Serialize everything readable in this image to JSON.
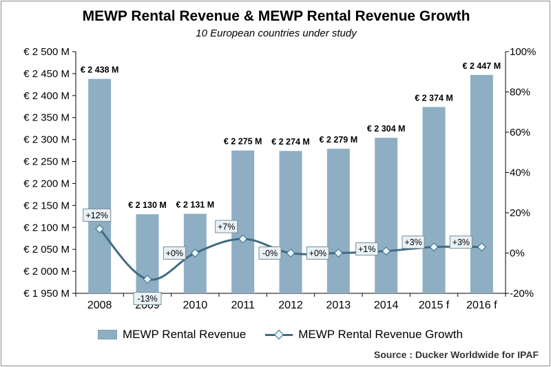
{
  "chart_data": {
    "type": "bar",
    "title": "MEWP Rental Revenue & MEWP Rental Revenue Growth",
    "subtitle": "10 European countries under study",
    "categories": [
      "2008",
      "2009",
      "2010",
      "2011",
      "2012",
      "2013",
      "2014",
      "2015 f",
      "2016 f"
    ],
    "series": [
      {
        "name": "MEWP Rental Revenue",
        "type": "bar",
        "axis": "left",
        "unit": "€ M",
        "values": [
          2438,
          2130,
          2131,
          2275,
          2274,
          2279,
          2304,
          2374,
          2447
        ],
        "labels": [
          "€ 2 438 M",
          "€ 2 130 M",
          "€ 2 131 M",
          "€ 2 275 M",
          "€ 2 274 M",
          "€ 2 279 M",
          "€ 2 304 M",
          "€ 2 374 M",
          "€ 2 447 M"
        ],
        "color": "#8eaec4"
      },
      {
        "name": "MEWP Rental Revenue Growth",
        "type": "line",
        "axis": "right",
        "unit": "%",
        "values": [
          12,
          -13,
          0,
          7,
          0,
          0,
          1,
          3,
          3
        ],
        "labels": [
          "+12%",
          "-13%",
          "+0%",
          "+7%",
          "-0%",
          "+0%",
          "+1%",
          "+3%",
          "+3%"
        ],
        "color": "#3f6b82"
      }
    ],
    "y_left": {
      "ylim": [
        1950,
        2500
      ],
      "ticks": [
        1950,
        2000,
        2050,
        2100,
        2150,
        2200,
        2250,
        2300,
        2350,
        2400,
        2450,
        2500
      ],
      "tick_labels": [
        "€ 1 950 M",
        "€ 2 000 M",
        "€ 2 050 M",
        "€ 2 100 M",
        "€ 2 150 M",
        "€ 2 200 M",
        "€ 2 250 M",
        "€ 2 300 M",
        "€ 2 350 M",
        "€ 2 400 M",
        "€ 2 450 M",
        "€ 2 500 M"
      ]
    },
    "y_right": {
      "ylim": [
        -20,
        100
      ],
      "ticks": [
        -20,
        0,
        20,
        40,
        60,
        80,
        100
      ],
      "tick_labels": [
        "-20%",
        "0%",
        "20%",
        "40%",
        "60%",
        "80%",
        "100%"
      ]
    },
    "grid": false,
    "legend": "bottom"
  },
  "source": "Source : Ducker Worldwide for IPAF"
}
